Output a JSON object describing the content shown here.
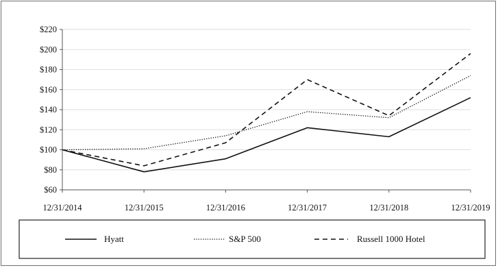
{
  "chart_data": {
    "type": "line",
    "categories": [
      "12/31/2014",
      "12/31/2015",
      "12/31/2016",
      "12/31/2017",
      "12/31/2018",
      "12/31/2019"
    ],
    "y_ticks": [
      "$60",
      "$80",
      "$100",
      "$120",
      "$140",
      "$160",
      "$180",
      "$200",
      "$220"
    ],
    "ylim": [
      60,
      220
    ],
    "y_format": "$",
    "grid": true,
    "legend_position": "bottom",
    "series": [
      {
        "name": "Hyatt",
        "style": "solid",
        "values": [
          100,
          78,
          91,
          122,
          113,
          152
        ]
      },
      {
        "name": "S&P 500",
        "style": "dotted",
        "values": [
          100,
          101,
          114,
          138,
          132,
          174
        ]
      },
      {
        "name": "Russell 1000 Hotel",
        "style": "dashed",
        "values": [
          100,
          84,
          107,
          170,
          134,
          196
        ]
      }
    ]
  }
}
